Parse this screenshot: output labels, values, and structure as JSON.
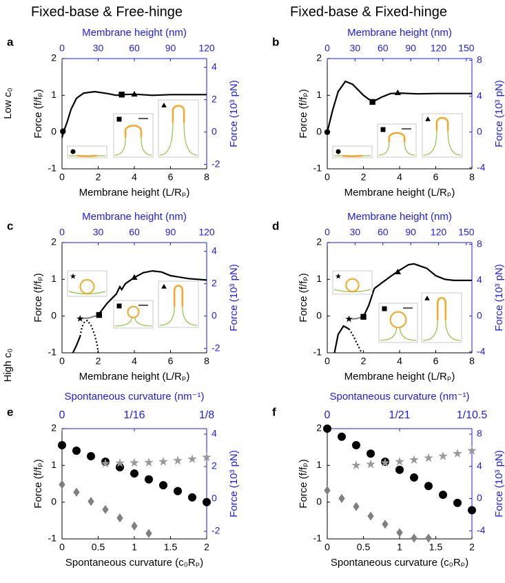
{
  "column_titles": [
    "Fixed-base & Free-hinge",
    "Fixed-base & Fixed-hinge"
  ],
  "row_labels": [
    "Low c₀",
    "High c₀"
  ],
  "chart_data": [
    {
      "type": "line",
      "letter": "a",
      "xlabel": "Membrane height (L/Rₚ)",
      "x2label": "Membrane height (nm)",
      "ylabel": "Force (f/fₚ)",
      "y2label": "Force (10³ pN)",
      "xlim": [
        0,
        8
      ],
      "xticks": [
        0,
        2,
        4,
        6,
        8
      ],
      "x2lim": [
        0,
        120
      ],
      "x2ticks": [
        0,
        30,
        60,
        90,
        120
      ],
      "ylim": [
        -1,
        2
      ],
      "yticks": [
        -1,
        0,
        1,
        2
      ],
      "y2lim": [
        -2.27,
        4.54
      ],
      "y2ticks": [
        -2,
        0,
        2,
        4
      ],
      "series": [
        {
          "color": "#000000",
          "style": "solid",
          "x": [
            0,
            0.1,
            0.3,
            0.5,
            0.8,
            1.2,
            1.8,
            2.5,
            3.0,
            3.3,
            4,
            5,
            6,
            7,
            8
          ],
          "values": [
            -0.15,
            0.02,
            0.3,
            0.62,
            0.92,
            1.06,
            1.1,
            1.05,
            1.0,
            1.02,
            1.03,
            1.0,
            1.02,
            1.02,
            1.02
          ]
        }
      ],
      "markers": [
        {
          "shape": "circle",
          "x": 0.05,
          "y": 0.02
        },
        {
          "shape": "square",
          "x": 3.3,
          "y": 1.02
        },
        {
          "shape": "triangle",
          "x": 4.0,
          "y": 1.03
        }
      ]
    },
    {
      "type": "line",
      "letter": "b",
      "xlabel": "Membrane height (L/Rₚ)",
      "x2label": "Membrane height (nm)",
      "ylabel": "Force (f/fₚ)",
      "y2label": "Force (10³ pN)",
      "xlim": [
        0,
        8
      ],
      "xticks": [
        0,
        2,
        4,
        6,
        8
      ],
      "x2lim": [
        0,
        156
      ],
      "x2ticks": [
        0,
        30,
        60,
        90,
        120,
        150
      ],
      "ylim": [
        -1,
        2
      ],
      "yticks": [
        -1,
        0,
        1,
        2
      ],
      "y2lim": [
        -4.1,
        8.2
      ],
      "y2ticks": [
        -4,
        0,
        4,
        8
      ],
      "series": [
        {
          "color": "#000000",
          "style": "solid",
          "x": [
            0,
            0.15,
            0.3,
            0.6,
            1.0,
            1.4,
            2.0,
            2.5,
            3.0,
            3.5,
            4,
            5,
            6,
            7,
            8
          ],
          "values": [
            0,
            0.3,
            0.6,
            1.1,
            1.38,
            1.3,
            1.0,
            0.82,
            0.95,
            1.05,
            1.06,
            1.04,
            1.05,
            1.05,
            1.05
          ]
        }
      ],
      "markers": [
        {
          "shape": "circle",
          "x": 0,
          "y": 0
        },
        {
          "shape": "square",
          "x": 2.5,
          "y": 0.82
        },
        {
          "shape": "triangle",
          "x": 3.9,
          "y": 1.07
        }
      ]
    },
    {
      "type": "line",
      "letter": "c",
      "xlabel": "Membrane height (L/Rₚ)",
      "x2label": "Membrane height (nm)",
      "ylabel": "Force (f/fₚ)",
      "y2label": "Force (10³ pN)",
      "xlim": [
        0,
        8
      ],
      "xticks": [
        0,
        2,
        4,
        6,
        8
      ],
      "x2lim": [
        0,
        120
      ],
      "x2ticks": [
        0,
        30,
        60,
        90,
        120
      ],
      "ylim": [
        -1,
        2
      ],
      "yticks": [
        -1,
        0,
        1,
        2
      ],
      "y2lim": [
        -2.27,
        4.54
      ],
      "y2ticks": [
        -2,
        0,
        2,
        4
      ],
      "series": [
        {
          "color": "#000000",
          "style": "solid",
          "x": [
            0.6,
            0.8,
            1.0,
            null,
            2.0,
            2.5,
            3.0,
            3.2,
            3.3,
            3.5,
            4,
            4.5,
            5,
            5.5,
            6,
            7,
            8
          ],
          "values": [
            -1,
            -0.8,
            -0.55,
            null,
            0.03,
            0.35,
            0.6,
            0.8,
            0.72,
            0.88,
            1.05,
            1.18,
            1.23,
            1.2,
            1.1,
            1.02,
            0.98
          ]
        },
        {
          "color": "#000000",
          "style": "dotted",
          "x": [
            1.0,
            1.1,
            1.25,
            1.4,
            1.6,
            1.8,
            1.95,
            2.0
          ],
          "values": [
            -0.55,
            -0.3,
            -0.15,
            -0.12,
            -0.25,
            -0.5,
            -0.8,
            -1
          ]
        },
        {
          "color": "#888888",
          "style": "solid",
          "x": [
            1.0,
            1.5,
            2.05
          ],
          "values": [
            -0.07,
            -0.05,
            0.03
          ]
        }
      ],
      "markers": [
        {
          "shape": "star",
          "x": 1.0,
          "y": -0.07
        },
        {
          "shape": "square",
          "x": 2.05,
          "y": 0.03
        },
        {
          "shape": "triangle",
          "x": 4.0,
          "y": 1.05
        }
      ]
    },
    {
      "type": "line",
      "letter": "d",
      "xlabel": "Membrane height (L/Rₚ)",
      "x2label": "Membrane height (nm)",
      "ylabel": "Force (f/fₚ)",
      "y2label": "Force (10³ pN)",
      "xlim": [
        0,
        8
      ],
      "xticks": [
        0,
        2,
        4,
        6,
        8
      ],
      "x2lim": [
        0,
        156
      ],
      "x2ticks": [
        0,
        30,
        60,
        90,
        120,
        150
      ],
      "ylim": [
        -1,
        2
      ],
      "yticks": [
        -1,
        0,
        1,
        2
      ],
      "y2lim": [
        -4.1,
        8.2
      ],
      "y2ticks": [
        -4,
        0,
        4,
        8
      ],
      "series": [
        {
          "color": "#000000",
          "style": "solid",
          "x": [
            0.4,
            0.6,
            0.9,
            1.2,
            null,
            2.0,
            2.3,
            2.6,
            3.0,
            3.5,
            4,
            4.5,
            4.8,
            5.5,
            6,
            6.5,
            7,
            8
          ],
          "values": [
            -1,
            -0.5,
            -0.27,
            -0.35,
            null,
            -0.02,
            0.3,
            0.75,
            0.9,
            1.08,
            1.25,
            1.4,
            1.42,
            1.3,
            1.1,
            1.0,
            0.97,
            0.97
          ]
        },
        {
          "color": "#000000",
          "style": "dotted",
          "x": [
            1.2,
            1.4,
            1.6,
            1.8,
            1.9
          ],
          "values": [
            -0.35,
            -0.5,
            -0.7,
            -0.9,
            -1
          ]
        },
        {
          "color": "#888888",
          "style": "solid",
          "x": [
            1.2,
            1.6,
            2.0
          ],
          "values": [
            -0.08,
            -0.07,
            -0.02
          ]
        }
      ],
      "markers": [
        {
          "shape": "star",
          "x": 1.2,
          "y": -0.08
        },
        {
          "shape": "square",
          "x": 2.0,
          "y": -0.02
        },
        {
          "shape": "triangle",
          "x": 3.9,
          "y": 1.2
        }
      ]
    },
    {
      "type": "scatter",
      "letter": "e",
      "xlabel": "Spontaneous curvature (c₀Rₚ)",
      "x2label": "Spontaneous curvature (nm⁻¹)",
      "ylabel": "Force (f/fₚ)",
      "y2label": "Force (10³ pN)",
      "xlim": [
        0,
        2
      ],
      "xticks": [
        0,
        0.5,
        1,
        1.5,
        2
      ],
      "x2lim": [
        0,
        0.125
      ],
      "x2ticks": [
        0,
        {
          "value": 0.0625,
          "label": "1/16"
        },
        {
          "value": 0.125,
          "label": "1/8"
        }
      ],
      "ylim": [
        -1,
        2
      ],
      "yticks": [
        -1,
        0,
        1,
        2
      ],
      "y2lim": [
        -2.47,
        4.34
      ],
      "y2ticks": [
        -2,
        0,
        2,
        4
      ],
      "series": [
        {
          "shape": "diamond",
          "color": "#808080",
          "x": [
            0,
            0.2,
            0.4,
            0.6,
            0.8,
            1.0,
            1.2
          ],
          "values": [
            0.48,
            0.27,
            0.02,
            -0.2,
            -0.43,
            -0.65,
            -0.85
          ]
        },
        {
          "shape": "circle",
          "color": "#000000",
          "x": [
            0,
            0.2,
            0.4,
            0.6,
            0.8,
            1.0,
            1.2,
            1.4,
            1.6,
            1.8,
            2.0
          ],
          "values": [
            1.55,
            1.4,
            1.25,
            1.1,
            0.95,
            0.78,
            0.62,
            0.46,
            0.3,
            0.13,
            0.0
          ]
        },
        {
          "shape": "star",
          "color": "#999999",
          "x": [
            0.6,
            0.8,
            1.0,
            1.2,
            1.4,
            1.6,
            1.8,
            2.0
          ],
          "values": [
            1.05,
            1.06,
            1.07,
            1.08,
            1.1,
            1.13,
            1.17,
            1.22
          ]
        }
      ]
    },
    {
      "type": "scatter",
      "letter": "f",
      "xlabel": "Spontaneous curvature (c₀Rₚ)",
      "x2label": "Spontaneous curvature (nm⁻¹)",
      "ylabel": "Force (f/fₚ)",
      "y2label": "Force (10³ pN)",
      "xlim": [
        0,
        2
      ],
      "xticks": [
        0,
        0.5,
        1,
        1.5,
        2
      ],
      "x2lim": [
        0,
        0.095238
      ],
      "x2ticks": [
        0,
        {
          "value": 0.047619,
          "label": "1/21"
        },
        {
          "value": 0.095238,
          "label": "1/10.5"
        }
      ],
      "ylim": [
        -1,
        2
      ],
      "yticks": [
        -1,
        0,
        1,
        2
      ],
      "y2lim": [
        -5.0,
        8.68
      ],
      "y2ticks": [
        -4,
        0,
        4,
        8
      ],
      "series": [
        {
          "shape": "diamond",
          "color": "#808080",
          "x": [
            0,
            0.2,
            0.4,
            0.6,
            0.8,
            1.0,
            1.2,
            1.4
          ],
          "values": [
            0.32,
            0.1,
            -0.12,
            -0.38,
            -0.6,
            -0.83,
            -0.98,
            -0.98
          ]
        },
        {
          "shape": "circle",
          "color": "#000000",
          "x": [
            0,
            0.2,
            0.4,
            0.6,
            0.8,
            1.0,
            1.2,
            1.4,
            1.6,
            1.8,
            2.0
          ],
          "values": [
            2.0,
            1.78,
            1.55,
            1.32,
            1.1,
            0.88,
            0.67,
            0.44,
            0.2,
            -0.02,
            -0.22
          ]
        },
        {
          "shape": "star",
          "color": "#999999",
          "x": [
            0.4,
            0.6,
            0.8,
            1.0,
            1.2,
            1.4,
            1.6,
            1.8,
            2.0
          ],
          "values": [
            1.0,
            1.03,
            1.07,
            1.1,
            1.15,
            1.2,
            1.25,
            1.32,
            1.4
          ]
        }
      ]
    }
  ]
}
